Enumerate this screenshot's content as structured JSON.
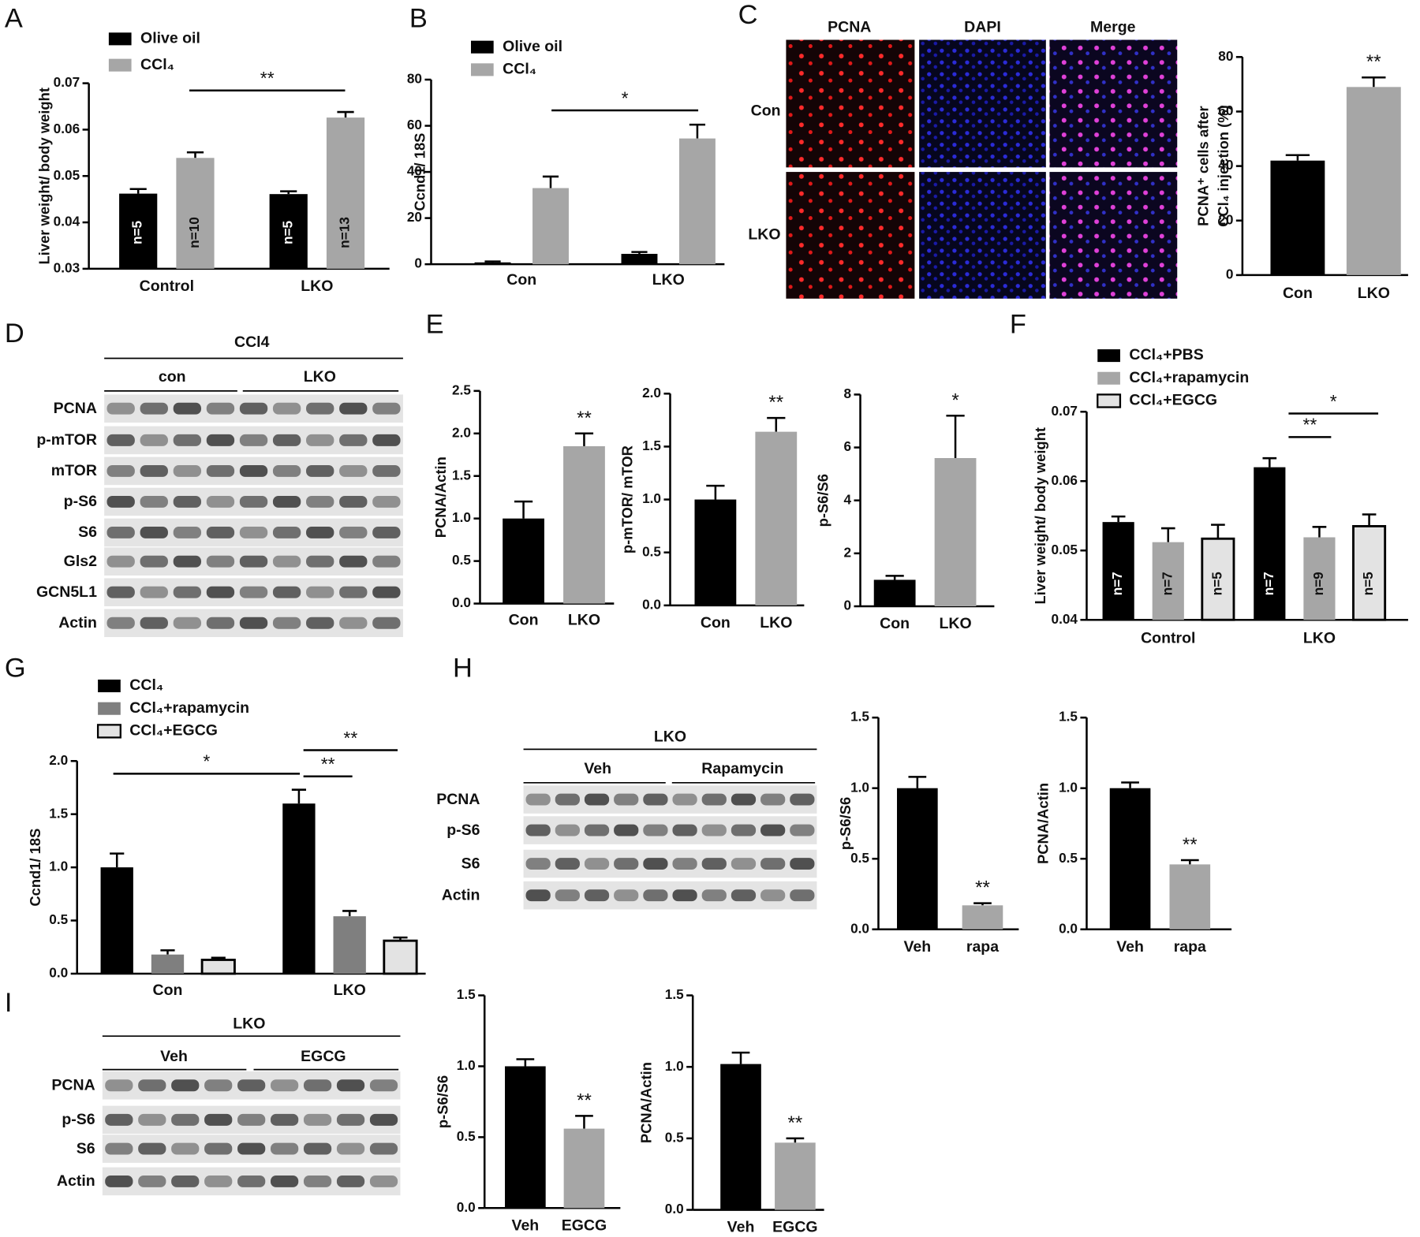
{
  "panel_letters": [
    "A",
    "B",
    "C",
    "D",
    "E",
    "F",
    "G",
    "H",
    "I"
  ],
  "images": {
    "columns": [
      "PCNA",
      "DAPI",
      "Merge"
    ],
    "rows": [
      "Con",
      "LKO"
    ]
  },
  "blots": [
    {
      "title": "CCl4",
      "groups": [
        "con",
        "LKO"
      ],
      "rows": [
        "PCNA",
        "p-mTOR",
        "mTOR",
        "p-S6",
        "S6",
        "Gls2",
        "GCN5L1",
        "Actin"
      ]
    },
    {
      "title": "LKO",
      "groups": [
        "Veh",
        "Rapamycin"
      ],
      "rows": [
        "PCNA",
        "p-S6",
        "S6",
        "Actin"
      ]
    },
    {
      "title": "LKO",
      "groups": [
        "Veh",
        "EGCG"
      ],
      "rows": [
        "PCNA",
        "p-S6",
        "S6",
        "Actin"
      ]
    }
  ],
  "chart_data": [
    {
      "type": "bar",
      "ylabel": "Liver weight/ body weight",
      "categories": [
        "Control",
        "LKO"
      ],
      "series": [
        {
          "name": "Olive oil",
          "color": "#000000",
          "values": [
            0.0462,
            0.0461
          ],
          "errors": [
            0.001,
            0.0006
          ],
          "n_labels": [
            "n=5",
            "n=5"
          ]
        },
        {
          "name": "CCl₄",
          "color": "#a6a6a6",
          "values": [
            0.0539,
            0.0626
          ],
          "errors": [
            0.0012,
            0.0012
          ],
          "n_labels": [
            "n=10",
            "n=13"
          ]
        }
      ],
      "ylim": [
        0.03,
        0.07
      ],
      "yticks": [
        0.03,
        0.04,
        0.05,
        0.06,
        0.07
      ],
      "annotations": [
        "**"
      ]
    },
    {
      "type": "bar",
      "ylabel": "Ccnd1/ 18S",
      "categories": [
        "Con",
        "LKO"
      ],
      "series": [
        {
          "name": "Olive oil",
          "color": "#000000",
          "values": [
            0.8,
            4.5
          ],
          "errors": [
            0.4,
            0.8
          ]
        },
        {
          "name": "CCl₄",
          "color": "#a6a6a6",
          "values": [
            33,
            54.5
          ],
          "errors": [
            5,
            6
          ]
        }
      ],
      "ylim": [
        0,
        80
      ],
      "yticks": [
        0,
        20,
        40,
        60,
        80
      ],
      "annotations": [
        "*"
      ]
    },
    {
      "type": "bar",
      "ylabel": [
        "PCNA⁺ cells after",
        "CCl₄ injection (%)"
      ],
      "categories": [
        "Con",
        "LKO"
      ],
      "values": [
        42,
        69
      ],
      "errors": [
        2,
        3.5
      ],
      "colors": [
        "#000000",
        "#a6a6a6"
      ],
      "ylim": [
        0,
        80
      ],
      "yticks": [
        0,
        20,
        40,
        60,
        80
      ],
      "annotations": [
        "**"
      ]
    },
    {
      "type": "bar",
      "ylabel": "PCNA/Actin",
      "categories": [
        "Con",
        "LKO"
      ],
      "values": [
        1.0,
        1.85
      ],
      "errors": [
        0.2,
        0.15
      ],
      "colors": [
        "#000000",
        "#a6a6a6"
      ],
      "ylim": [
        0,
        2.5
      ],
      "yticks": [
        {
          "value": 0,
          "label": "0.0"
        },
        0.5,
        {
          "value": 1,
          "label": "1.0"
        },
        1.5,
        {
          "value": 2,
          "label": "2.0"
        },
        2.5
      ],
      "annotations": [
        "**"
      ]
    },
    {
      "type": "bar",
      "ylabel": "p-mTOR/ mTOR",
      "categories": [
        "Con",
        "LKO"
      ],
      "values": [
        1.0,
        1.64
      ],
      "errors": [
        0.13,
        0.13
      ],
      "colors": [
        "#000000",
        "#a6a6a6"
      ],
      "ylim": [
        0,
        2
      ],
      "yticks": [
        {
          "value": 0,
          "label": "0.0"
        },
        0.5,
        {
          "value": 1,
          "label": "1.0"
        },
        1.5,
        {
          "value": 2,
          "label": "2.0"
        }
      ],
      "annotations": [
        "**"
      ]
    },
    {
      "type": "bar",
      "ylabel": "p-S6/S6",
      "categories": [
        "Con",
        "LKO"
      ],
      "values": [
        1.0,
        5.6
      ],
      "errors": [
        0.15,
        1.6
      ],
      "colors": [
        "#000000",
        "#a6a6a6"
      ],
      "ylim": [
        0,
        8
      ],
      "yticks": [
        0,
        2,
        4,
        6,
        8
      ],
      "annotations": [
        "*"
      ]
    },
    {
      "type": "bar",
      "ylabel": "Liver weight/ body weight",
      "categories": [
        "Control",
        "LKO"
      ],
      "series": [
        {
          "name": "CCl₄+PBS",
          "color": "#000000",
          "values": [
            0.0541,
            0.062
          ],
          "errors": [
            0.0008,
            0.0013
          ],
          "n_labels": [
            "n=7",
            "n=7"
          ]
        },
        {
          "name": "CCl₄+rapamycin",
          "color": "#a6a6a6",
          "values": [
            0.0512,
            0.0519
          ],
          "errors": [
            0.002,
            0.0015
          ],
          "n_labels": [
            "n=7",
            "n=9"
          ]
        },
        {
          "name": "CCl₄+EGCG",
          "color": "#e3e3e3",
          "edgecolor": "#000000",
          "values": [
            0.0517,
            0.0535
          ],
          "errors": [
            0.002,
            0.0017
          ],
          "n_labels": [
            "n=5",
            "n=5"
          ]
        }
      ],
      "ylim": [
        0.04,
        0.07
      ],
      "yticks": [
        0.04,
        0.05,
        0.06,
        0.07
      ],
      "annotations": [
        "**",
        "*"
      ]
    },
    {
      "type": "bar",
      "ylabel": "Ccnd1/ 18S",
      "categories": [
        "Con",
        "LKO"
      ],
      "series": [
        {
          "name": "CCl₄",
          "color": "#000000",
          "values": [
            1.0,
            1.6
          ],
          "errors": [
            0.13,
            0.13
          ]
        },
        {
          "name": "CCl₄+rapamycin",
          "color": "#7f7f7f",
          "values": [
            0.18,
            0.54
          ],
          "errors": [
            0.04,
            0.05
          ]
        },
        {
          "name": "CCl₄+EGCG",
          "color": "#e3e3e3",
          "edgecolor": "#000000",
          "values": [
            0.13,
            0.31
          ],
          "errors": [
            0.02,
            0.03
          ]
        }
      ],
      "ylim": [
        0,
        2
      ],
      "yticks": [
        {
          "value": 0,
          "label": "0.0"
        },
        0.5,
        {
          "value": 1,
          "label": "1.0"
        },
        1.5,
        {
          "value": 2,
          "label": "2.0"
        }
      ],
      "annotations": [
        "*",
        "**",
        "**"
      ]
    },
    {
      "type": "bar",
      "ylabel": "p-S6/S6",
      "categories": [
        "Veh",
        "rapa"
      ],
      "values": [
        1.0,
        0.17
      ],
      "errors": [
        0.08,
        0.015
      ],
      "colors": [
        "#000000",
        "#a6a6a6"
      ],
      "ylim": [
        0,
        1.5
      ],
      "yticks": [
        {
          "value": 0,
          "label": "0.0"
        },
        0.5,
        {
          "value": 1,
          "label": "1.0"
        },
        1.5
      ],
      "annotations": [
        "**"
      ]
    },
    {
      "type": "bar",
      "ylabel": "PCNA/Actin",
      "categories": [
        "Veh",
        "rapa"
      ],
      "values": [
        1.0,
        0.46
      ],
      "errors": [
        0.04,
        0.03
      ],
      "colors": [
        "#000000",
        "#a6a6a6"
      ],
      "ylim": [
        0,
        1.5
      ],
      "yticks": [
        {
          "value": 0,
          "label": "0.0"
        },
        0.5,
        {
          "value": 1,
          "label": "1.0"
        },
        1.5
      ],
      "annotations": [
        "**"
      ]
    },
    {
      "type": "bar",
      "ylabel": "p-S6/S6",
      "categories": [
        "Veh",
        "EGCG"
      ],
      "values": [
        1.0,
        0.56
      ],
      "errors": [
        0.05,
        0.09
      ],
      "colors": [
        "#000000",
        "#a6a6a6"
      ],
      "ylim": [
        0,
        1.5
      ],
      "yticks": [
        {
          "value": 0,
          "label": "0.0"
        },
        0.5,
        {
          "value": 1,
          "label": "1.0"
        },
        1.5
      ],
      "annotations": [
        "**"
      ]
    },
    {
      "type": "bar",
      "ylabel": "PCNA/Actin",
      "categories": [
        "Veh",
        "EGCG"
      ],
      "values": [
        1.02,
        0.47
      ],
      "errors": [
        0.08,
        0.03
      ],
      "colors": [
        "#000000",
        "#a6a6a6"
      ],
      "ylim": [
        0,
        1.5
      ],
      "yticks": [
        {
          "value": 0,
          "label": "0.0"
        },
        0.5,
        {
          "value": 1,
          "label": "1.0"
        },
        1.5
      ],
      "annotations": [
        "**"
      ]
    }
  ]
}
